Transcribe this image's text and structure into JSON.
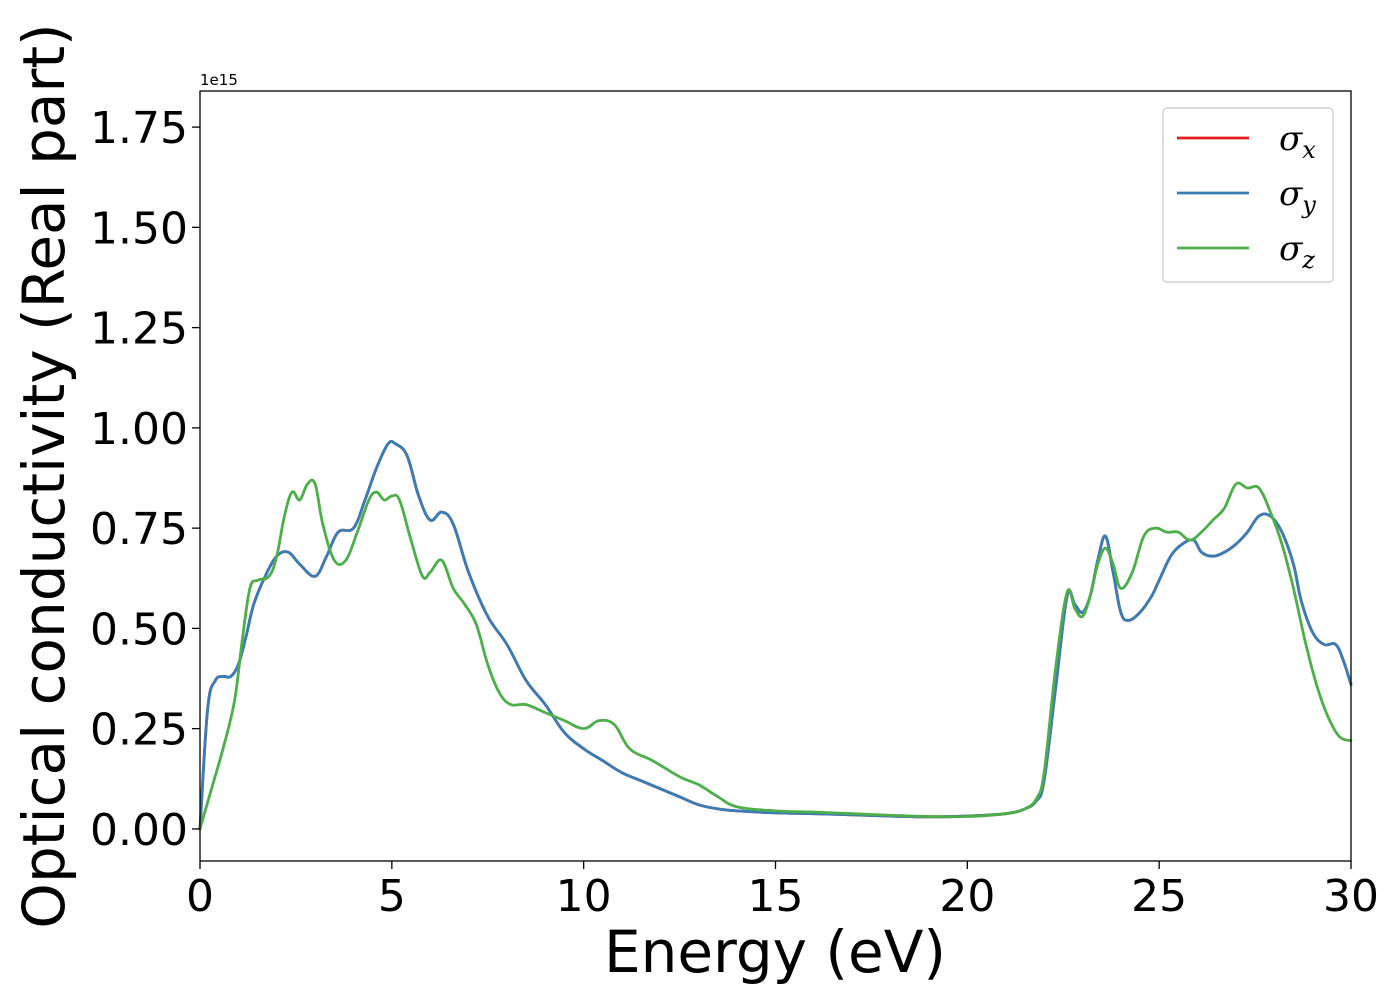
{
  "chart_data": {
    "type": "line",
    "title": "",
    "xlabel": "Energy (eV)",
    "ylabel": "Optical conductivity (Real part)",
    "y_offset_label": "1e15",
    "xlim": [
      0,
      30
    ],
    "ylim": [
      -0.08,
      1.84
    ],
    "x_ticks": [
      0,
      5,
      10,
      15,
      20,
      25,
      30
    ],
    "x_tick_labels": [
      "0",
      "5",
      "10",
      "15",
      "20",
      "25",
      "30"
    ],
    "y_ticks": [
      0,
      0.25,
      0.5,
      0.75,
      1.0,
      1.25,
      1.5,
      1.75
    ],
    "y_tick_labels": [
      "0.00",
      "0.25",
      "0.50",
      "0.75",
      "1.00",
      "1.25",
      "1.50",
      "1.75"
    ],
    "grid": false,
    "legend_position": "top-right",
    "series": [
      {
        "name": "σ",
        "sub": "x",
        "color": "#e41a1c",
        "x": [
          0,
          0.2,
          0.4,
          0.6,
          0.8,
          1.0,
          1.2,
          1.4,
          1.7,
          2.0,
          2.3,
          2.6,
          3.0,
          3.3,
          3.6,
          4.0,
          4.3,
          4.6,
          4.9,
          5.1,
          5.4,
          5.7,
          6.0,
          6.3,
          6.6,
          7.0,
          7.5,
          8.0,
          8.5,
          9.0,
          9.5,
          10.0,
          10.5,
          11.0,
          11.5,
          12.0,
          12.5,
          13.0,
          13.5,
          14.0,
          15.0,
          16.0,
          17.0,
          18.0,
          19.0,
          20.0,
          21.0,
          21.5,
          21.8,
          22.0,
          22.3,
          22.6,
          22.8,
          23.0,
          23.2,
          23.4,
          23.6,
          23.8,
          24.0,
          24.2,
          24.5,
          24.8,
          25.0,
          25.3,
          25.6,
          25.9,
          26.1,
          26.4,
          26.7,
          27.0,
          27.3,
          27.6,
          27.9,
          28.2,
          28.5,
          28.7,
          29.0,
          29.3,
          29.6,
          29.8,
          30.0
        ],
        "y": [
          0.0,
          0.3,
          0.37,
          0.38,
          0.38,
          0.41,
          0.48,
          0.56,
          0.63,
          0.68,
          0.69,
          0.66,
          0.63,
          0.68,
          0.74,
          0.75,
          0.82,
          0.9,
          0.96,
          0.96,
          0.93,
          0.83,
          0.77,
          0.79,
          0.76,
          0.64,
          0.53,
          0.46,
          0.37,
          0.31,
          0.24,
          0.2,
          0.17,
          0.14,
          0.12,
          0.1,
          0.08,
          0.06,
          0.05,
          0.045,
          0.04,
          0.038,
          0.035,
          0.032,
          0.03,
          0.032,
          0.038,
          0.05,
          0.07,
          0.12,
          0.35,
          0.58,
          0.56,
          0.54,
          0.58,
          0.67,
          0.73,
          0.64,
          0.54,
          0.52,
          0.54,
          0.58,
          0.62,
          0.68,
          0.71,
          0.72,
          0.69,
          0.68,
          0.69,
          0.71,
          0.74,
          0.78,
          0.78,
          0.74,
          0.66,
          0.57,
          0.49,
          0.46,
          0.46,
          0.42,
          0.36
        ]
      },
      {
        "name": "σ",
        "sub": "y",
        "color": "#377eb8",
        "x": [
          0,
          0.2,
          0.4,
          0.6,
          0.8,
          1.0,
          1.2,
          1.4,
          1.7,
          2.0,
          2.3,
          2.6,
          3.0,
          3.3,
          3.6,
          4.0,
          4.3,
          4.6,
          4.9,
          5.1,
          5.4,
          5.7,
          6.0,
          6.3,
          6.6,
          7.0,
          7.5,
          8.0,
          8.5,
          9.0,
          9.5,
          10.0,
          10.5,
          11.0,
          11.5,
          12.0,
          12.5,
          13.0,
          13.5,
          14.0,
          15.0,
          16.0,
          17.0,
          18.0,
          19.0,
          20.0,
          21.0,
          21.5,
          21.8,
          22.0,
          22.3,
          22.6,
          22.8,
          23.0,
          23.2,
          23.4,
          23.6,
          23.8,
          24.0,
          24.2,
          24.5,
          24.8,
          25.0,
          25.3,
          25.6,
          25.9,
          26.1,
          26.4,
          26.7,
          27.0,
          27.3,
          27.6,
          27.9,
          28.2,
          28.5,
          28.7,
          29.0,
          29.3,
          29.6,
          29.8,
          30.0
        ],
        "y": [
          0.0,
          0.3,
          0.37,
          0.38,
          0.38,
          0.41,
          0.48,
          0.56,
          0.63,
          0.68,
          0.69,
          0.66,
          0.63,
          0.68,
          0.74,
          0.75,
          0.82,
          0.9,
          0.96,
          0.96,
          0.93,
          0.83,
          0.77,
          0.79,
          0.76,
          0.64,
          0.53,
          0.46,
          0.37,
          0.31,
          0.24,
          0.2,
          0.17,
          0.14,
          0.12,
          0.1,
          0.08,
          0.06,
          0.05,
          0.045,
          0.04,
          0.038,
          0.035,
          0.032,
          0.03,
          0.032,
          0.038,
          0.05,
          0.07,
          0.12,
          0.35,
          0.58,
          0.56,
          0.54,
          0.58,
          0.67,
          0.73,
          0.64,
          0.54,
          0.52,
          0.54,
          0.58,
          0.62,
          0.68,
          0.71,
          0.72,
          0.69,
          0.68,
          0.69,
          0.71,
          0.74,
          0.78,
          0.78,
          0.74,
          0.66,
          0.57,
          0.49,
          0.46,
          0.46,
          0.42,
          0.36
        ]
      },
      {
        "name": "σ",
        "sub": "z",
        "color": "#4daf4a",
        "x": [
          0,
          0.3,
          0.6,
          0.9,
          1.1,
          1.3,
          1.5,
          1.8,
          2.0,
          2.2,
          2.4,
          2.6,
          2.8,
          3.0,
          3.2,
          3.5,
          3.8,
          4.1,
          4.4,
          4.6,
          4.8,
          5.0,
          5.2,
          5.5,
          5.8,
          6.0,
          6.3,
          6.6,
          6.9,
          7.2,
          7.5,
          7.8,
          8.1,
          8.5,
          9.0,
          9.5,
          10.0,
          10.4,
          10.8,
          11.2,
          11.8,
          12.5,
          13.0,
          13.5,
          14.0,
          15.0,
          16.0,
          17.0,
          18.0,
          19.0,
          20.0,
          21.0,
          21.5,
          21.8,
          22.0,
          22.3,
          22.6,
          22.8,
          23.0,
          23.2,
          23.4,
          23.6,
          23.8,
          24.0,
          24.3,
          24.6,
          24.9,
          25.2,
          25.5,
          25.8,
          26.1,
          26.4,
          26.7,
          27.0,
          27.3,
          27.6,
          27.9,
          28.2,
          28.5,
          28.8,
          29.1,
          29.4,
          29.7,
          30.0
        ],
        "y": [
          0.0,
          0.1,
          0.2,
          0.32,
          0.47,
          0.6,
          0.62,
          0.63,
          0.68,
          0.78,
          0.84,
          0.82,
          0.86,
          0.86,
          0.76,
          0.67,
          0.67,
          0.74,
          0.82,
          0.84,
          0.82,
          0.83,
          0.82,
          0.72,
          0.63,
          0.64,
          0.67,
          0.6,
          0.56,
          0.51,
          0.41,
          0.34,
          0.31,
          0.31,
          0.29,
          0.27,
          0.25,
          0.27,
          0.26,
          0.2,
          0.17,
          0.13,
          0.11,
          0.08,
          0.055,
          0.045,
          0.042,
          0.038,
          0.034,
          0.031,
          0.031,
          0.038,
          0.05,
          0.075,
          0.14,
          0.4,
          0.59,
          0.55,
          0.53,
          0.58,
          0.66,
          0.7,
          0.66,
          0.6,
          0.64,
          0.73,
          0.75,
          0.74,
          0.74,
          0.72,
          0.74,
          0.77,
          0.8,
          0.86,
          0.85,
          0.85,
          0.79,
          0.71,
          0.6,
          0.47,
          0.36,
          0.28,
          0.23,
          0.22
        ]
      }
    ]
  }
}
